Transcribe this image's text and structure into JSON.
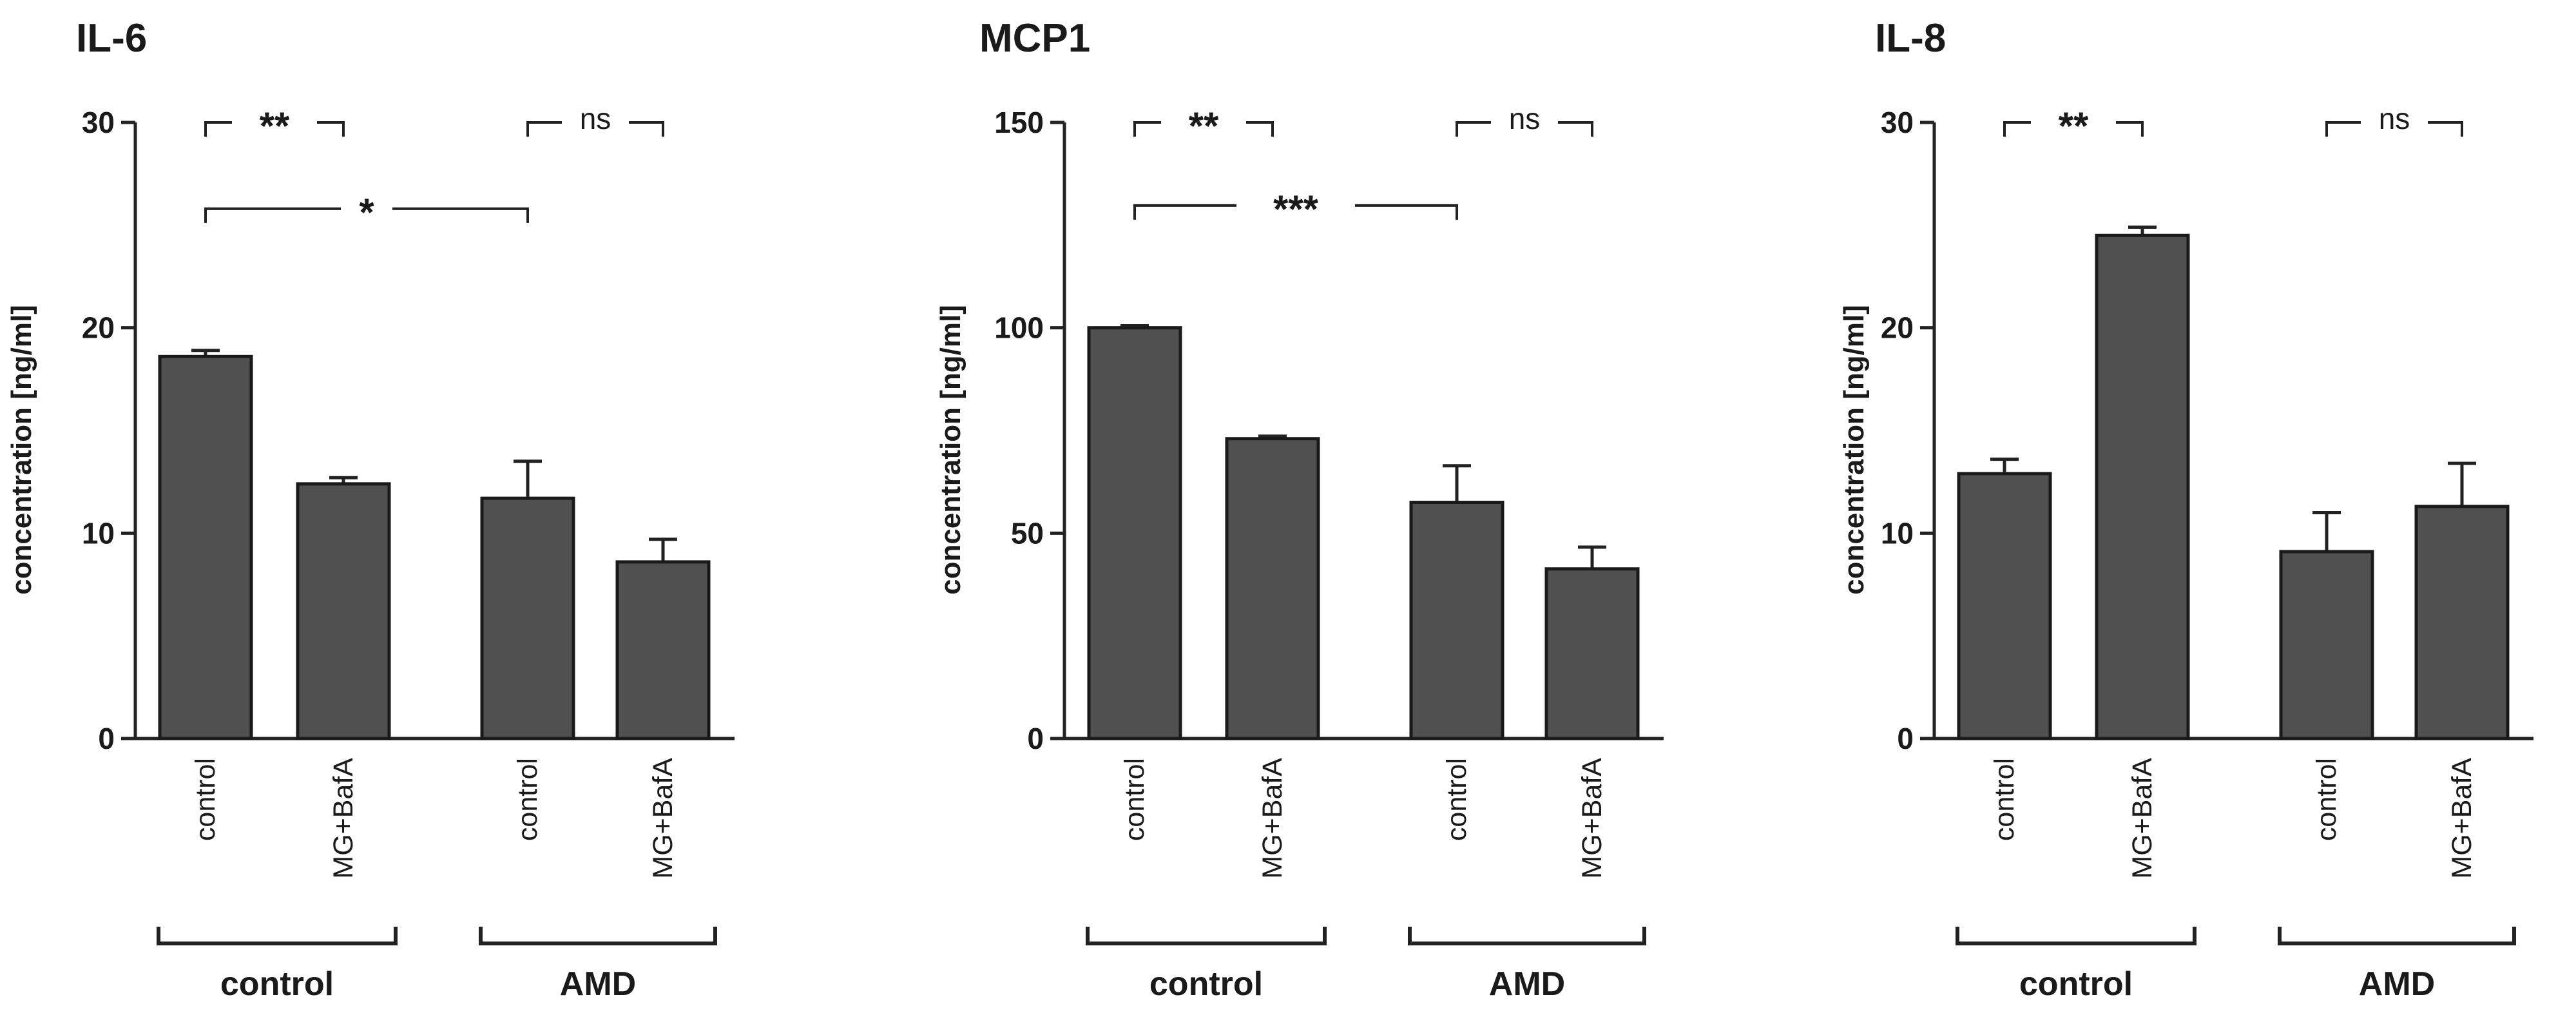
{
  "chart_data": [
    {
      "type": "bar",
      "title": "IL-6",
      "ylabel": "concentration [ng/ml]",
      "ylim": [
        0,
        30
      ],
      "yticks": [
        0,
        10,
        20,
        30
      ],
      "categories": [
        "control",
        "MG+BafA",
        "control",
        "MG+BafA"
      ],
      "groups": [
        {
          "label": "control",
          "bars": [
            0,
            1
          ]
        },
        {
          "label": "AMD",
          "bars": [
            2,
            3
          ]
        }
      ],
      "values": [
        18.6,
        12.4,
        11.7,
        8.6
      ],
      "errors": [
        0.3,
        0.3,
        1.8,
        1.1
      ],
      "significance": [
        {
          "from": 0,
          "to": 1,
          "label": "**",
          "level": 30
        },
        {
          "from": 2,
          "to": 3,
          "label": "ns",
          "level": 30
        },
        {
          "from": 0,
          "to": 2,
          "label": "*",
          "level": 25.8
        }
      ],
      "bar_color": "#505050",
      "grid": false
    },
    {
      "type": "bar",
      "title": "MCP1",
      "ylabel": "concentration [ng/ml]",
      "ylim": [
        0,
        150
      ],
      "yticks": [
        0,
        50,
        100,
        150
      ],
      "categories": [
        "control",
        "MG+BafA",
        "control",
        "MG+BafA"
      ],
      "groups": [
        {
          "label": "control",
          "bars": [
            0,
            1
          ]
        },
        {
          "label": "AMD",
          "bars": [
            2,
            3
          ]
        }
      ],
      "values": [
        100,
        73,
        57.5,
        41.3
      ],
      "errors": [
        0.5,
        0.6,
        8.9,
        5.3
      ],
      "significance": [
        {
          "from": 0,
          "to": 1,
          "label": "**",
          "level": 150
        },
        {
          "from": 2,
          "to": 3,
          "label": "ns",
          "level": 150
        },
        {
          "from": 0,
          "to": 2,
          "label": "***",
          "level": 129
        }
      ],
      "bar_color": "#505050",
      "grid": false
    },
    {
      "type": "bar",
      "title": "IL-8",
      "ylabel": "concentration [ng/ml]",
      "ylim": [
        0,
        30
      ],
      "yticks": [
        0,
        10,
        20,
        30
      ],
      "categories": [
        "control",
        "MG+BafA",
        "control",
        "MG+BafA"
      ],
      "groups": [
        {
          "label": "control",
          "bars": [
            0,
            1
          ]
        },
        {
          "label": "AMD",
          "bars": [
            2,
            3
          ]
        }
      ],
      "values": [
        12.9,
        24.5,
        9.1,
        11.3
      ],
      "errors": [
        0.7,
        0.4,
        1.9,
        2.1
      ],
      "significance": [
        {
          "from": 0,
          "to": 1,
          "label": "**",
          "level": 30
        },
        {
          "from": 2,
          "to": 3,
          "label": "ns",
          "level": 30
        }
      ],
      "bar_color": "#505050",
      "grid": false
    }
  ]
}
